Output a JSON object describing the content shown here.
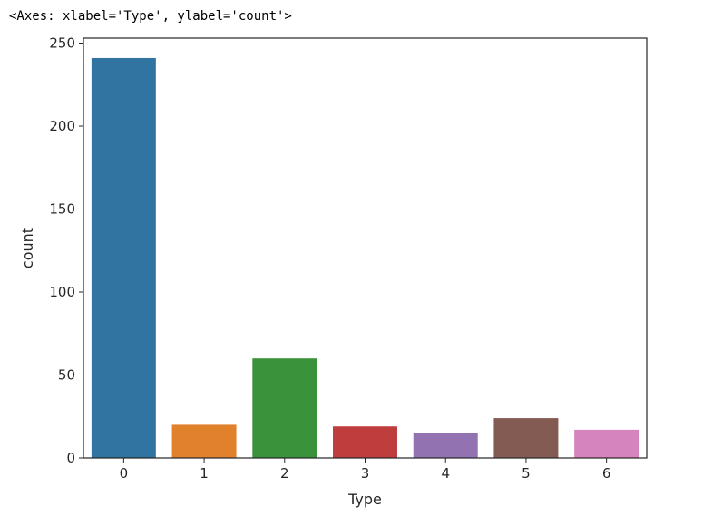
{
  "output": {
    "repr_text": "<Axes: xlabel='Type', ylabel='count'>"
  },
  "chart_data": {
    "type": "bar",
    "categories": [
      "0",
      "1",
      "2",
      "3",
      "4",
      "5",
      "6"
    ],
    "values": [
      241,
      20,
      60,
      19,
      15,
      24,
      17
    ],
    "colors": [
      "#3274a1",
      "#e1812c",
      "#3a923a",
      "#c03d3e",
      "#9372b2",
      "#845b53",
      "#d684bd"
    ],
    "xlabel": "Type",
    "ylabel": "count",
    "ylim": [
      0,
      253
    ],
    "yticks": [
      0,
      50,
      100,
      150,
      200,
      250
    ],
    "grid": false,
    "legend": "none"
  }
}
